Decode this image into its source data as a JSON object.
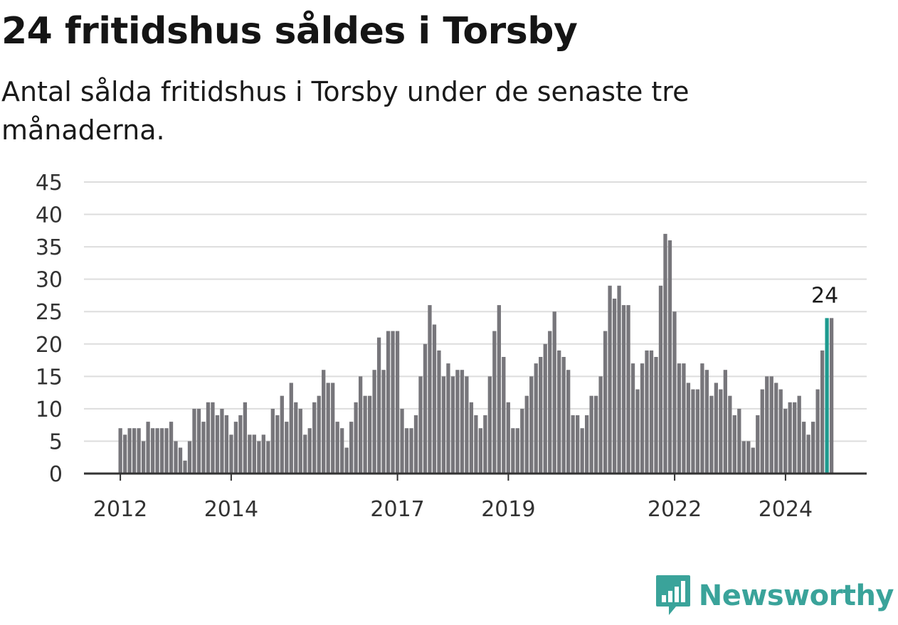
{
  "header": {
    "title": "24 fritidshus såldes i Torsby",
    "subtitle": "Antal sålda fritidshus i Torsby under de senaste tre månaderna."
  },
  "brand": {
    "name": "Newsworthy",
    "icon": "bar-chart-logo-icon",
    "color": "#3aa39a"
  },
  "chart_data": {
    "type": "bar",
    "title": "24 fritidshus såldes i Torsby",
    "subtitle": "Antal sålda fritidshus i Torsby under de senaste tre månaderna.",
    "x_tick_labels": [
      "2012",
      "2014",
      "2017",
      "2019",
      "2022",
      "2024"
    ],
    "y_ticks": [
      "0",
      "5",
      "10",
      "15",
      "20",
      "25",
      "30",
      "35",
      "40",
      "45"
    ],
    "ylim": [
      0,
      45
    ],
    "grid": true,
    "bar_color": "#77767b",
    "highlight_color": "#1e9a8f",
    "highlight_index": 153,
    "annotation": {
      "label": "24",
      "target": "last bar"
    },
    "values": [
      7,
      6,
      7,
      7,
      7,
      5,
      8,
      7,
      7,
      7,
      7,
      8,
      5,
      4,
      2,
      5,
      10,
      10,
      8,
      11,
      11,
      9,
      10,
      9,
      6,
      8,
      9,
      11,
      6,
      6,
      5,
      6,
      5,
      10,
      9,
      12,
      8,
      14,
      11,
      10,
      6,
      7,
      11,
      12,
      16,
      14,
      14,
      8,
      7,
      4,
      8,
      11,
      15,
      12,
      12,
      16,
      21,
      16,
      22,
      22,
      22,
      10,
      7,
      7,
      9,
      15,
      20,
      26,
      23,
      19,
      15,
      17,
      15,
      16,
      16,
      15,
      11,
      9,
      7,
      9,
      15,
      22,
      26,
      18,
      11,
      7,
      7,
      10,
      12,
      15,
      17,
      18,
      20,
      22,
      25,
      19,
      18,
      16,
      9,
      9,
      7,
      9,
      12,
      12,
      15,
      22,
      29,
      27,
      29,
      26,
      26,
      17,
      13,
      17,
      19,
      19,
      18,
      29,
      37,
      36,
      25,
      17,
      17,
      14,
      13,
      13,
      17,
      16,
      12,
      14,
      13,
      16,
      12,
      9,
      10,
      5,
      5,
      4,
      9,
      13,
      15,
      15,
      14,
      13,
      10,
      11,
      11,
      12,
      8,
      6,
      8,
      13,
      19,
      24,
      24
    ]
  }
}
